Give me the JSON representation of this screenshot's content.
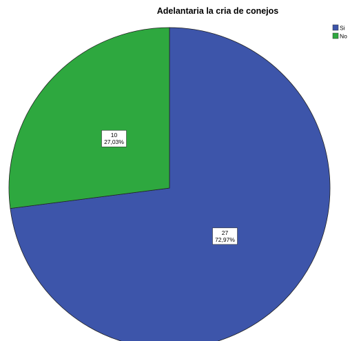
{
  "chart_data": {
    "type": "pie",
    "title": "Adelantaria la cria de conejos",
    "slices": [
      {
        "label": "Si",
        "count_label": "27",
        "percent_label": "72,97%",
        "value": 27,
        "color": "#3d55aa"
      },
      {
        "label": "No",
        "count_label": "10",
        "percent_label": "27,03%",
        "value": 10,
        "color": "#2ea83f"
      }
    ],
    "start": "12 o'clock",
    "direction": "clockwise",
    "legend_position": "top-right"
  }
}
